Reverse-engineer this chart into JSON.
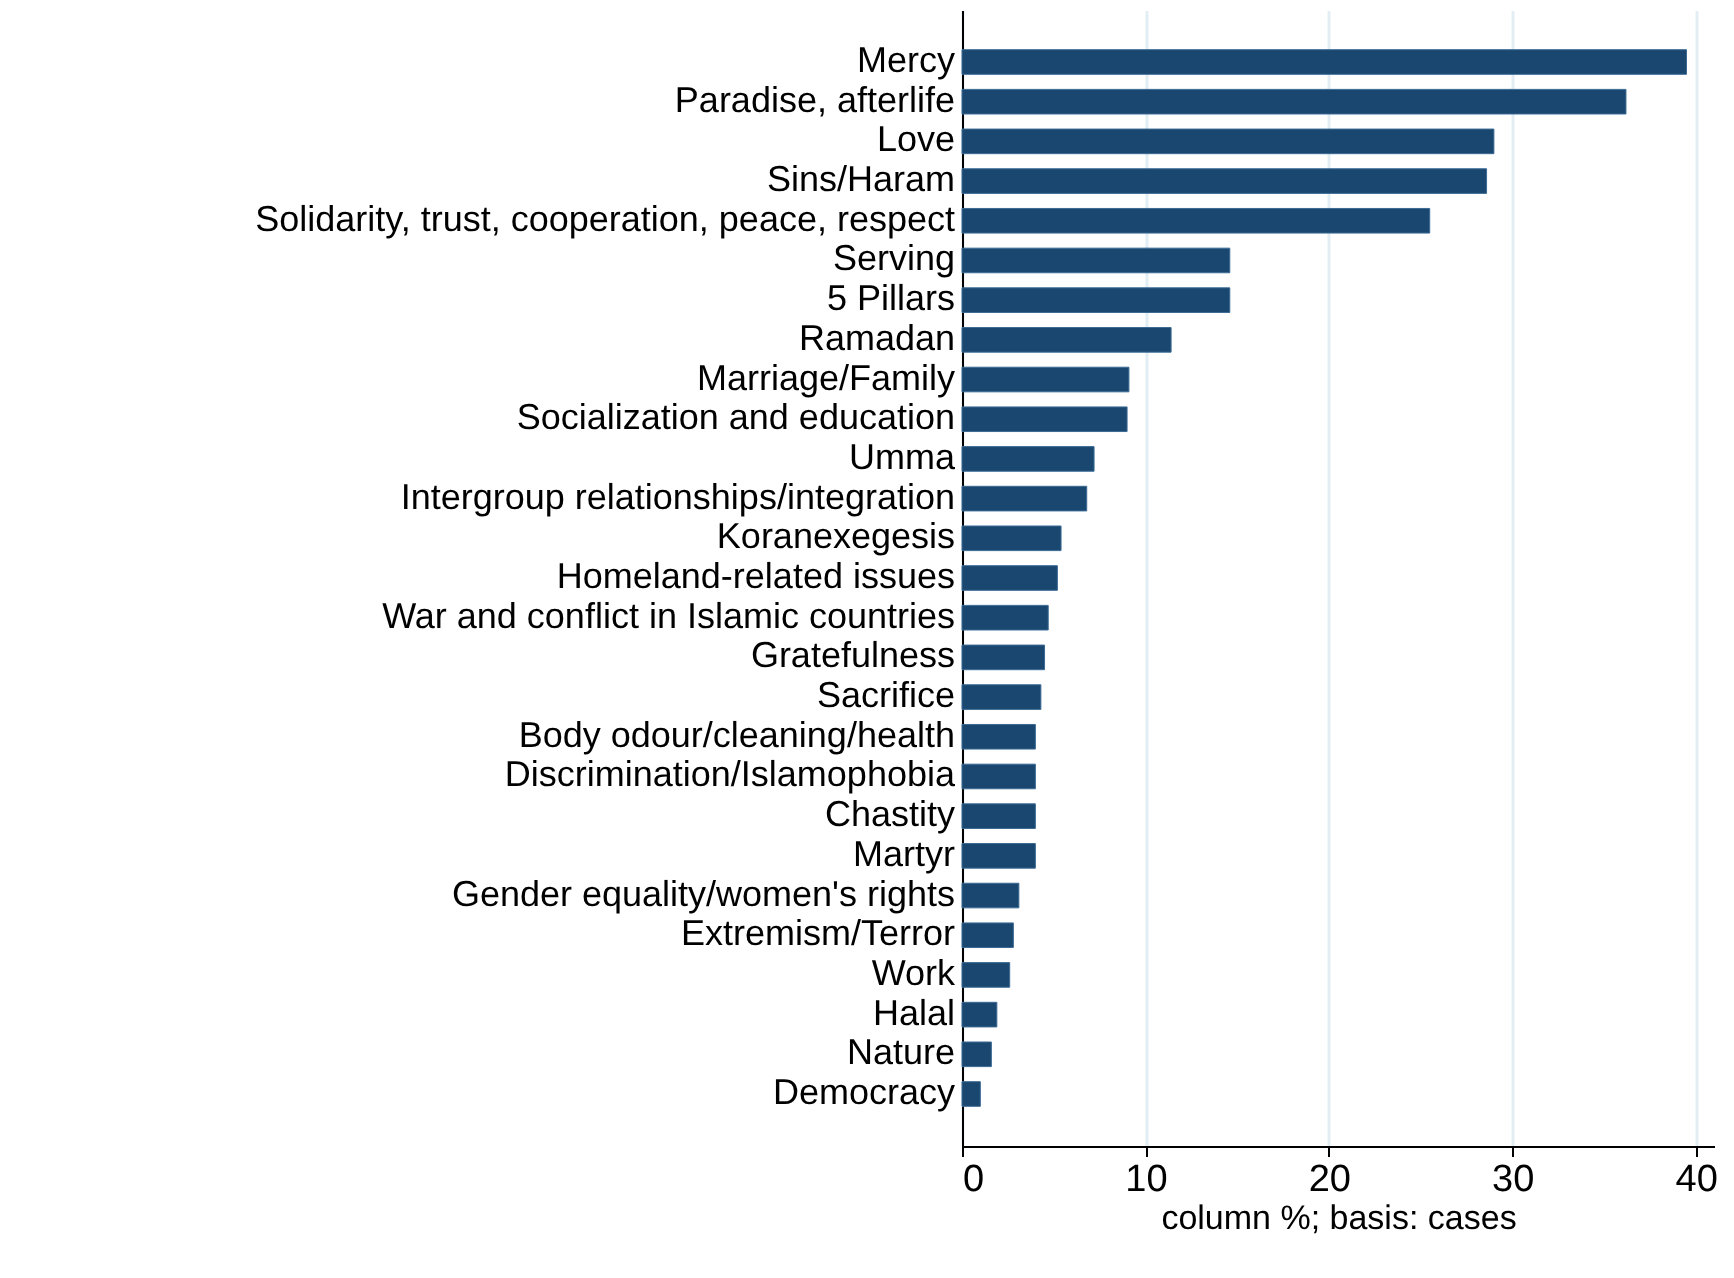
{
  "chart_data": {
    "type": "bar",
    "orientation": "horizontal",
    "xlabel": "column %; basis: cases",
    "categories": [
      "Mercy",
      "Paradise, afterlife",
      "Love",
      "Sins/Haram",
      "Solidarity, trust, cooperation, peace, respect",
      "Serving",
      "5 Pillars",
      "Ramadan",
      "Marriage/Family",
      "Socialization and education",
      "Umma",
      "Intergroup relationships/integration",
      "Koranexegesis",
      "Homeland-related issues",
      "War and conflict in Islamic countries",
      "Gratefulness",
      "Sacrifice",
      "Body odour/cleaning/health",
      "Discrimination/Islamophobia",
      "Chastity",
      "Martyr",
      "Gender equality/women's rights",
      "Extremism/Terror",
      "Work",
      "Halal",
      "Nature",
      "Democracy"
    ],
    "values": [
      39.5,
      36.2,
      29.0,
      28.6,
      25.5,
      14.6,
      14.6,
      11.4,
      9.1,
      9.0,
      7.2,
      6.8,
      5.4,
      5.2,
      4.7,
      4.5,
      4.3,
      4.0,
      4.0,
      4.0,
      4.0,
      3.1,
      2.8,
      2.6,
      1.9,
      1.6,
      1.0
    ],
    "color": "#1a476f",
    "xlim": [
      0,
      41
    ],
    "xticks": [
      0,
      10,
      20,
      30,
      40
    ],
    "grid": "x"
  }
}
